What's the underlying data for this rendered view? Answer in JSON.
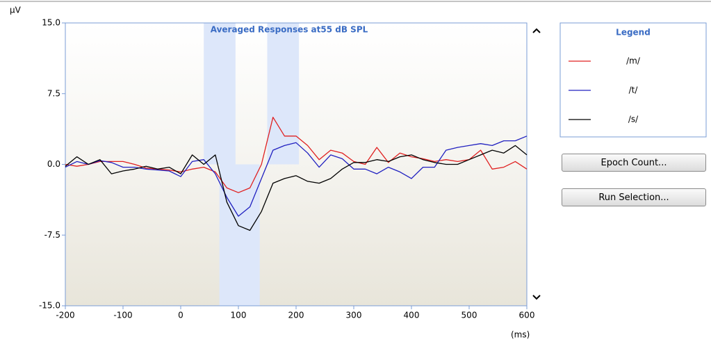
{
  "chart_data": {
    "type": "line",
    "title": "Averaged Responses at55 dB SPL",
    "y_label": "µV",
    "x_label": "(ms)",
    "xlim": [
      -200,
      600
    ],
    "xticks": [
      -200,
      -100,
      0,
      100,
      200,
      300,
      400,
      500,
      600
    ],
    "ylim": [
      -15,
      15
    ],
    "yticks": [
      {
        "value": -15,
        "label": "-15.0"
      },
      {
        "value": -7.5,
        "label": "-7.5"
      },
      {
        "value": 0,
        "label": "0.0"
      },
      {
        "value": 7.5,
        "label": "7.5"
      },
      {
        "value": 15,
        "label": "15.0"
      }
    ],
    "shaded_regions": [
      {
        "x": [
          40,
          95
        ],
        "y": [
          0,
          15
        ]
      },
      {
        "x": [
          67,
          137
        ],
        "y": [
          -15,
          0
        ]
      },
      {
        "x": [
          150,
          205
        ],
        "y": [
          0,
          15
        ]
      }
    ],
    "region_color": "#dde7fa",
    "x": [
      -200,
      -180,
      -160,
      -140,
      -120,
      -100,
      -80,
      -60,
      -40,
      -20,
      0,
      20,
      40,
      60,
      80,
      100,
      120,
      140,
      160,
      180,
      200,
      220,
      240,
      260,
      280,
      300,
      320,
      340,
      360,
      380,
      400,
      420,
      440,
      460,
      480,
      500,
      520,
      540,
      560,
      580,
      600
    ],
    "series": [
      {
        "name": "/m/",
        "color": "#e02020",
        "values": [
          0,
          -0.2,
          0,
          0.3,
          0.3,
          0.3,
          0,
          -0.4,
          -0.5,
          -0.6,
          -0.8,
          -0.5,
          -0.3,
          -0.8,
          -2.5,
          -3.0,
          -2.5,
          0,
          5.0,
          3.0,
          3.0,
          2.0,
          0.5,
          1.5,
          1.2,
          0.3,
          0,
          1.8,
          0.2,
          1.2,
          0.8,
          0.6,
          0.3,
          0.5,
          0.3,
          0.5,
          1.5,
          -0.5,
          -0.3,
          0.3,
          -0.5
        ]
      },
      {
        "name": "/t/",
        "color": "#2020c0",
        "values": [
          -0.3,
          0.3,
          0,
          0.4,
          0.2,
          -0.3,
          -0.3,
          -0.5,
          -0.6,
          -0.7,
          -1.3,
          0.3,
          0.5,
          -1.0,
          -3.5,
          -5.5,
          -4.5,
          -1.5,
          1.5,
          2.0,
          2.3,
          1.2,
          -0.3,
          1.0,
          0.6,
          -0.5,
          -0.5,
          -1.0,
          -0.3,
          -0.8,
          -1.5,
          -0.3,
          -0.3,
          1.5,
          1.8,
          2.0,
          2.2,
          2.0,
          2.5,
          2.5,
          3.0
        ]
      },
      {
        "name": "/s/",
        "color": "#000000",
        "values": [
          -0.2,
          0.8,
          0,
          0.5,
          -1.0,
          -0.7,
          -0.5,
          -0.2,
          -0.5,
          -0.3,
          -1.0,
          1.0,
          0,
          1.0,
          -4.0,
          -6.5,
          -7.0,
          -5.0,
          -2.0,
          -1.5,
          -1.2,
          -1.8,
          -2.0,
          -1.5,
          -0.5,
          0.2,
          0.2,
          0.5,
          0.3,
          0.8,
          1.0,
          0.5,
          0.2,
          0,
          0,
          0.5,
          1.0,
          1.5,
          1.2,
          2.0,
          1.0
        ]
      }
    ]
  },
  "legend_title": "Legend",
  "buttons": [
    "Epoch Count...",
    "Run Selection..."
  ]
}
